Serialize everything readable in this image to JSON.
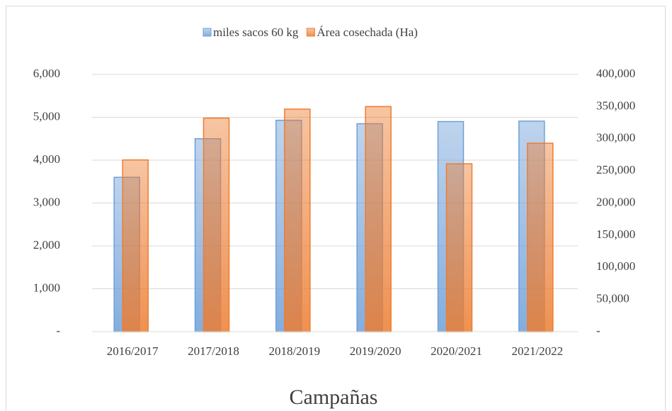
{
  "chart_data": {
    "type": "bar",
    "x_label": "Campañas",
    "categories": [
      "2016/2017",
      "2017/2018",
      "2018/2019",
      "2019/2020",
      "2020/2021",
      "2021/2022"
    ],
    "series": [
      {
        "name": "miles sacos 60 kg",
        "color": "#6e9fd8",
        "values": [
          3600,
          4500,
          4930,
          4850,
          4900,
          4910
        ]
      },
      {
        "name": "Área cosechada (Ha)",
        "color": "#ed7d31",
        "axis": "y2",
        "values": [
          267000,
          332000,
          346000,
          350000,
          261000,
          293000
        ]
      }
    ],
    "ylim": [
      0,
      6000
    ],
    "yticks": [
      {
        "value": 0,
        "label": "-"
      },
      {
        "value": 1000,
        "label": "1,000"
      },
      {
        "value": 2000,
        "label": "2,000"
      },
      {
        "value": 3000,
        "label": "3,000"
      },
      {
        "value": 4000,
        "label": "4,000"
      },
      {
        "value": 5000,
        "label": "5,000"
      },
      {
        "value": 6000,
        "label": "6,000"
      }
    ],
    "y2lim": [
      0,
      400000
    ],
    "y2ticks": [
      {
        "value": 0,
        "label": "-"
      },
      {
        "value": 50000,
        "label": "50,000"
      },
      {
        "value": 100000,
        "label": "100,000"
      },
      {
        "value": 150000,
        "label": "150,000"
      },
      {
        "value": 200000,
        "label": "200,000"
      },
      {
        "value": 250000,
        "label": "250,000"
      },
      {
        "value": 300000,
        "label": "300,000"
      },
      {
        "value": 350000,
        "label": "350,000"
      },
      {
        "value": 400000,
        "label": "400,000"
      }
    ],
    "grid": true,
    "legend": "top"
  }
}
